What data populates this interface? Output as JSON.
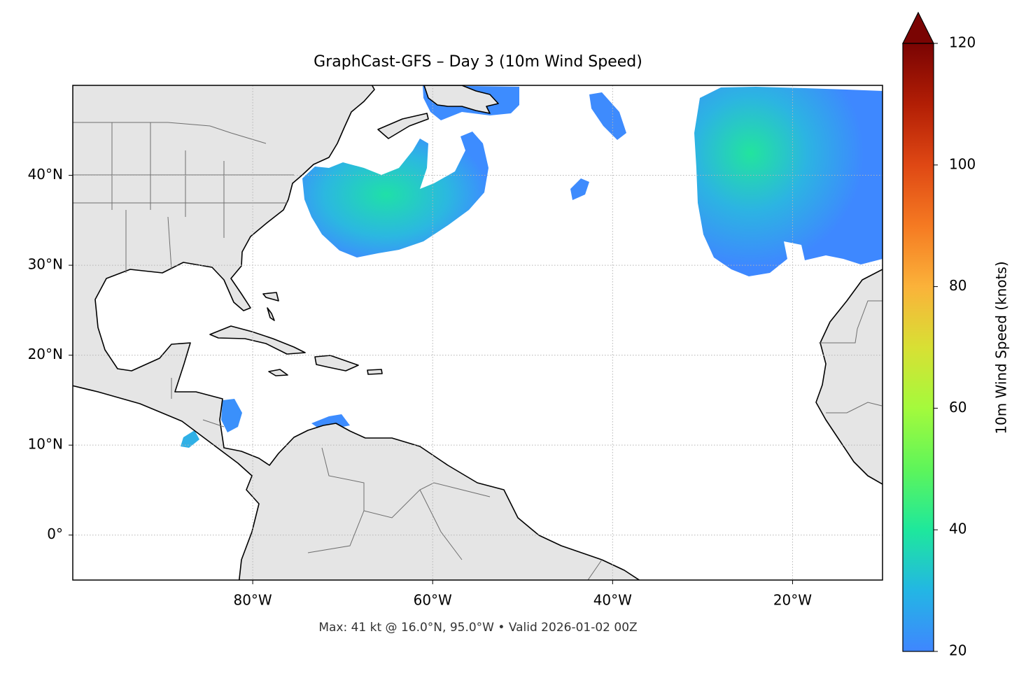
{
  "chart_data": {
    "type": "map",
    "title": "GraphCast-GFS – Day 3 (10m Wind Speed)",
    "footnote": "Max: 41 kt @ 16.0°N, 95.0°W • Valid 2026-01-02 00Z",
    "xlim": [
      -100,
      -10
    ],
    "ylim": [
      -5,
      50
    ],
    "xticks": [
      {
        "value": -80,
        "label": "80°W"
      },
      {
        "value": -60,
        "label": "60°W"
      },
      {
        "value": -40,
        "label": "40°W"
      },
      {
        "value": -20,
        "label": "20°W"
      }
    ],
    "yticks": [
      {
        "value": 0,
        "label": "0°"
      },
      {
        "value": 10,
        "label": "10°N"
      },
      {
        "value": 20,
        "label": "20°N"
      },
      {
        "value": 30,
        "label": "30°N"
      },
      {
        "value": 40,
        "label": "40°N"
      }
    ],
    "grid": true,
    "colorbar": {
      "label": "10m Wind Speed (knots)",
      "lim": [
        20,
        120
      ],
      "ticks": [
        20,
        40,
        60,
        80,
        100,
        120
      ],
      "extend": "max",
      "colors": [
        "#3f86ff",
        "#23b6e4",
        "#1ee89c",
        "#5ef55a",
        "#a4fa3c",
        "#d8e034",
        "#fbb23a",
        "#f57a22",
        "#df4814",
        "#b21e05",
        "#7a0403"
      ]
    }
  }
}
